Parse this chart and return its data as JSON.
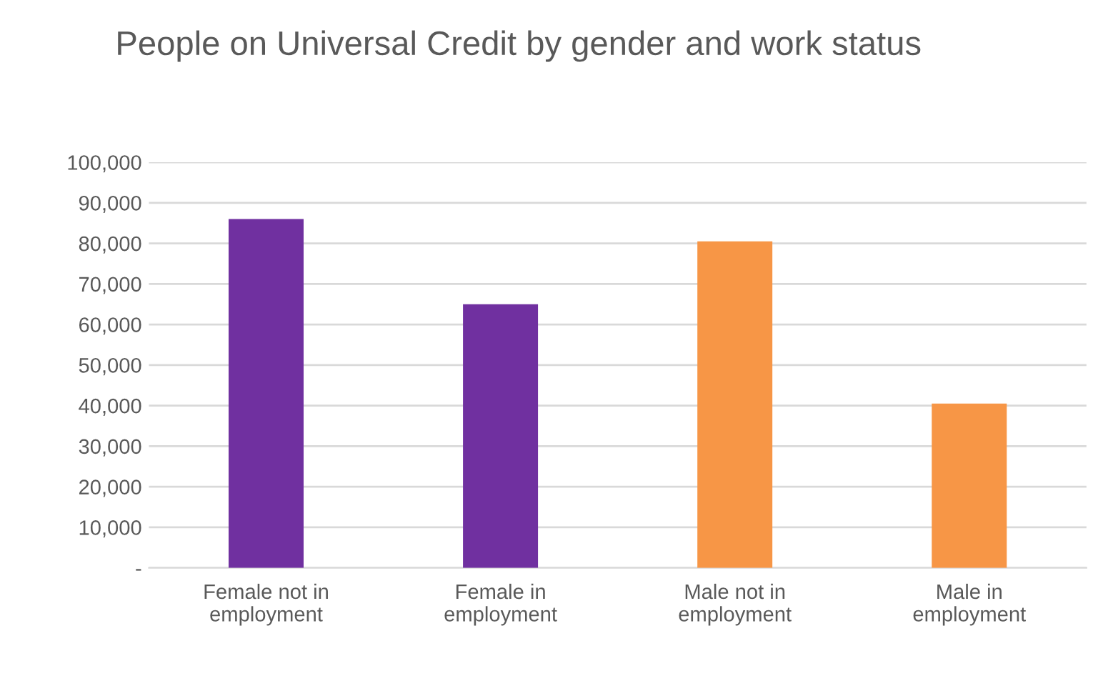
{
  "chart_data": {
    "type": "bar",
    "title": "People on Universal Credit by gender and work status",
    "categories": [
      "Female not in employment",
      "Female in employment",
      "Male not in employment",
      "Male in employment"
    ],
    "values": [
      86000,
      65000,
      80500,
      40500
    ],
    "colors": [
      "#7030a0",
      "#7030a0",
      "#f79646",
      "#f79646"
    ],
    "ylim": [
      0,
      100000
    ],
    "yticks": [
      {
        "value": 0,
        "label": "-"
      },
      {
        "value": 10000,
        "label": "10,000"
      },
      {
        "value": 20000,
        "label": "20,000"
      },
      {
        "value": 30000,
        "label": "30,000"
      },
      {
        "value": 40000,
        "label": "40,000"
      },
      {
        "value": 50000,
        "label": "50,000"
      },
      {
        "value": 60000,
        "label": "60,000"
      },
      {
        "value": 70000,
        "label": "70,000"
      },
      {
        "value": 80000,
        "label": "80,000"
      },
      {
        "value": 90000,
        "label": "90,000"
      },
      {
        "value": 100000,
        "label": "100,000"
      }
    ],
    "grid": "y"
  }
}
